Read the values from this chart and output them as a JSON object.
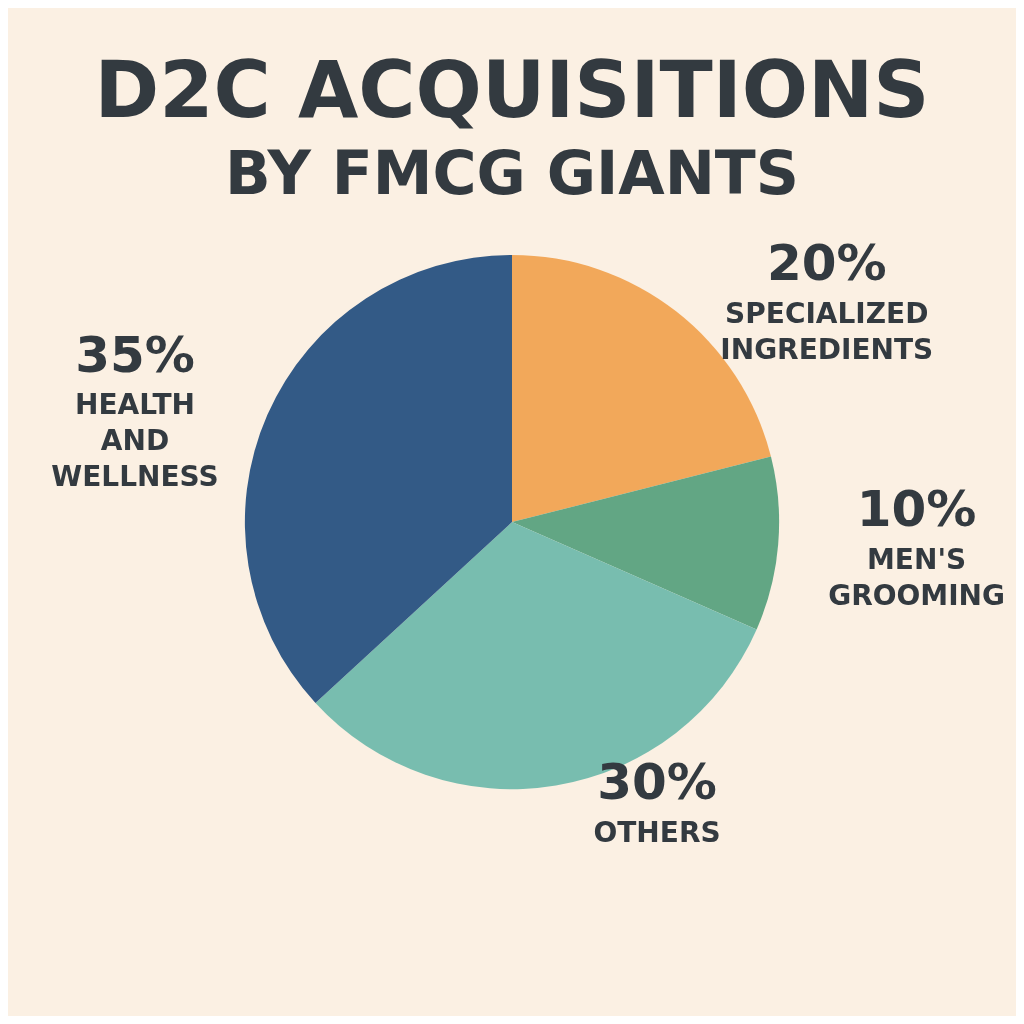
{
  "chart_data": {
    "type": "pie",
    "title": "D2C ACQUISITIONS",
    "subtitle": "BY FMCG GIANTS",
    "categories": [
      "SPECIALIZED INGREDIENTS",
      "MEN'S GROOMING",
      "OTHERS",
      "HEALTH AND WELLNESS"
    ],
    "values": [
      20,
      10,
      30,
      35
    ],
    "value_labels": [
      "20%",
      "10%",
      "30%",
      "35%"
    ],
    "colors": [
      "#f2a85a",
      "#62a684",
      "#78bdaf",
      "#335a86"
    ],
    "legend": false
  }
}
